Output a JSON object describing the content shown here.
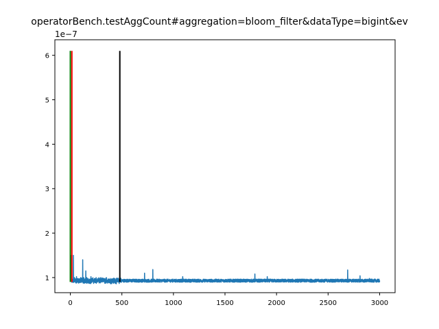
{
  "chart_data": {
    "type": "line",
    "title": "operatorBench.testAggCount#aggregation=bloom_filter&dataType=bigint&ev",
    "xlabel": "",
    "ylabel": "",
    "y_scale_label": "1e−7",
    "xlim": [
      -150,
      3150
    ],
    "ylim": [
      0.66,
      6.35
    ],
    "x_ticks": [
      0,
      500,
      1000,
      1500,
      2000,
      2500,
      3000
    ],
    "x_tick_labels": [
      "0",
      "500",
      "1000",
      "1500",
      "2000",
      "2500",
      "3000"
    ],
    "y_ticks": [
      1,
      2,
      3,
      4,
      5,
      6
    ],
    "y_tick_labels": [
      "1",
      "2",
      "3",
      "4",
      "5",
      "6"
    ],
    "grid": false,
    "vlines": [
      {
        "x": 0,
        "ymin": 0.9,
        "ymax": 6.1,
        "color": "#008000"
      },
      {
        "x": 15,
        "ymin": 0.9,
        "ymax": 6.1,
        "color": "#ff0000"
      },
      {
        "x": 480,
        "ymin": 0.9,
        "ymax": 6.1,
        "color": "#000000"
      }
    ],
    "series": [
      {
        "color": "#1f77b4",
        "baseline": 0.93,
        "noise": 0.035,
        "n": 3000,
        "points": [
          [
            0,
            6.1
          ],
          [
            5,
            1.5
          ],
          [
            10,
            1.0
          ],
          [
            20,
            0.95
          ],
          [
            30,
            1.5
          ],
          [
            40,
            1.0
          ],
          [
            60,
            1.02
          ],
          [
            80,
            0.97
          ],
          [
            100,
            1.0
          ],
          [
            120,
            1.4
          ],
          [
            130,
            1.0
          ],
          [
            150,
            1.15
          ],
          [
            160,
            1.0
          ],
          [
            200,
            1.02
          ],
          [
            250,
            1.0
          ],
          [
            300,
            0.98
          ],
          [
            350,
            1.0
          ],
          [
            400,
            0.97
          ],
          [
            450,
            0.95
          ],
          [
            500,
            0.93
          ],
          [
            720,
            1.1
          ],
          [
            800,
            1.18
          ],
          [
            1090,
            1.02
          ],
          [
            1790,
            1.08
          ],
          [
            1910,
            1.02
          ],
          [
            2690,
            1.17
          ],
          [
            2810,
            1.04
          ],
          [
            2900,
            0.98
          ],
          [
            3000,
            0.93
          ]
        ]
      }
    ]
  }
}
